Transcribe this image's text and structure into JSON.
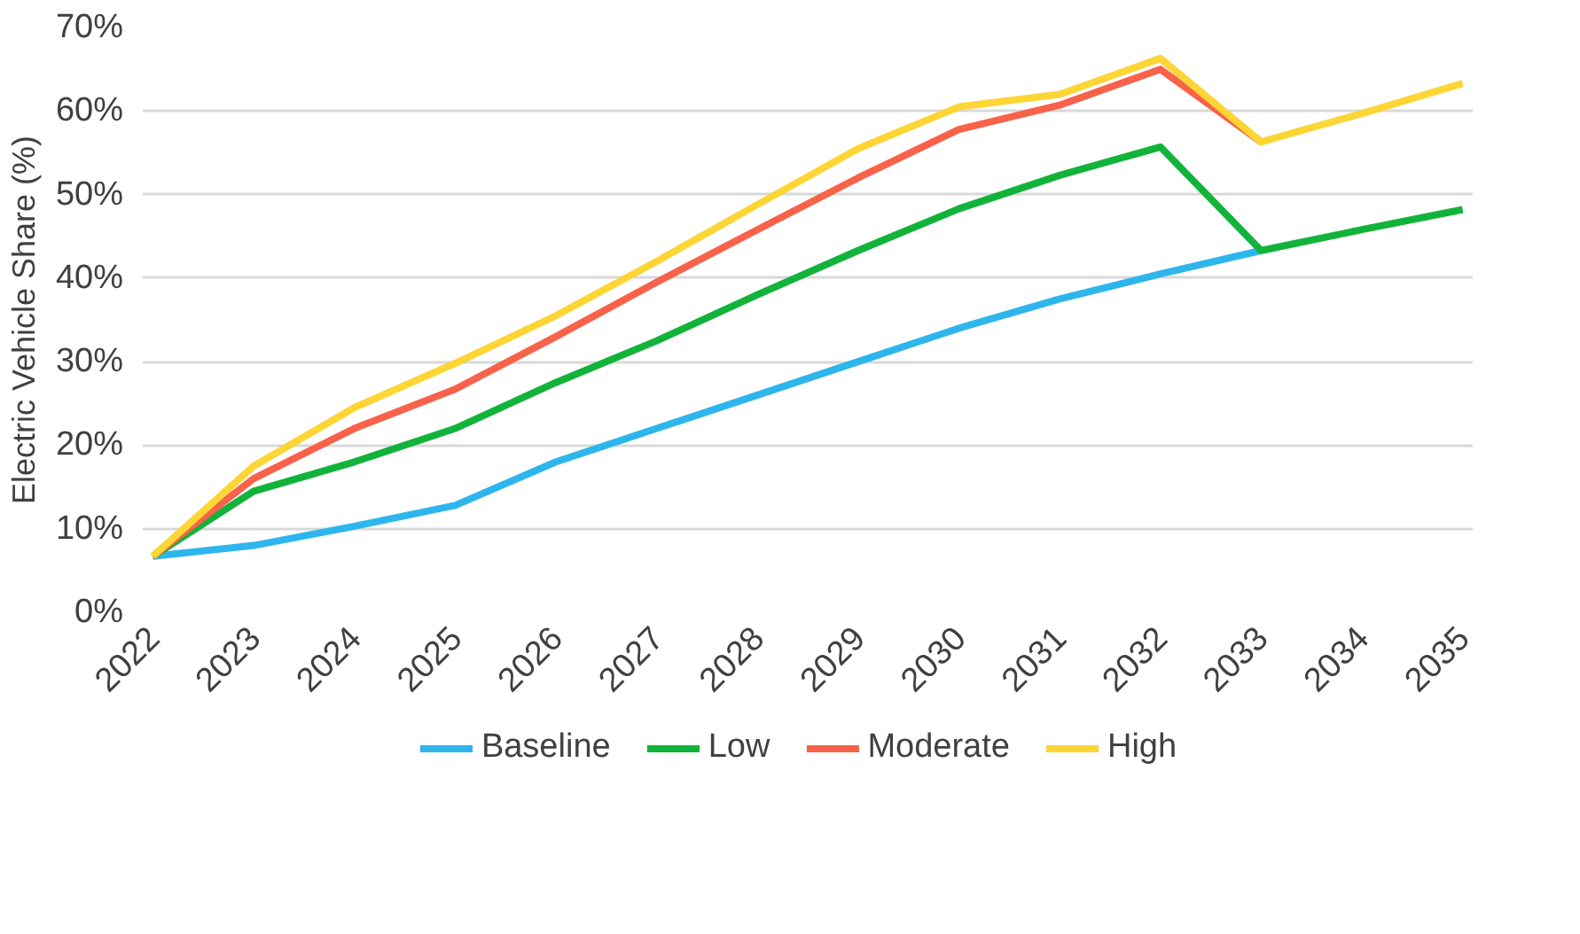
{
  "chart_data": {
    "type": "line",
    "ylabel": "Electric Vehicle Share (%)",
    "categories": [
      "2022",
      "2023",
      "2024",
      "2025",
      "2026",
      "2027",
      "2028",
      "2029",
      "2030",
      "2031",
      "2032",
      "2033",
      "2034",
      "2035"
    ],
    "series": [
      {
        "name": "Baseline",
        "color": "#2eb6ec",
        "values": [
          6.7,
          8,
          10.3,
          12.8,
          18,
          22,
          26,
          30,
          34,
          37.5,
          40.5,
          43.3,
          null,
          null
        ]
      },
      {
        "name": "Low",
        "color": "#12b33a",
        "values": [
          6.7,
          14.5,
          18,
          22,
          27.5,
          32.5,
          38,
          43.3,
          48.3,
          52.3,
          55.7,
          43.3,
          45.8,
          48.2
        ]
      },
      {
        "name": "Moderate",
        "color": "#f8624a",
        "values": [
          6.7,
          16,
          22,
          26.7,
          33,
          39.5,
          45.8,
          52,
          57.8,
          60.7,
          65,
          56.3,
          null,
          null
        ]
      },
      {
        "name": "High",
        "color": "#fdd535",
        "values": [
          6.7,
          17.5,
          24.5,
          29.8,
          35.5,
          42,
          48.8,
          55.5,
          60.5,
          62,
          66.3,
          56.3,
          59.7,
          63.3
        ]
      }
    ],
    "ylim": [
      0,
      70
    ],
    "yticks": [
      {
        "value": 0,
        "label": "0%"
      },
      {
        "value": 10,
        "label": "10%"
      },
      {
        "value": 20,
        "label": "20%"
      },
      {
        "value": 30,
        "label": "30%"
      },
      {
        "value": 40,
        "label": "40%"
      },
      {
        "value": 50,
        "label": "50%"
      },
      {
        "value": 60,
        "label": "60%"
      },
      {
        "value": 70,
        "label": "70%"
      }
    ],
    "grid": "y",
    "legend": "bottom",
    "marker": "none",
    "line_style": "solid"
  }
}
